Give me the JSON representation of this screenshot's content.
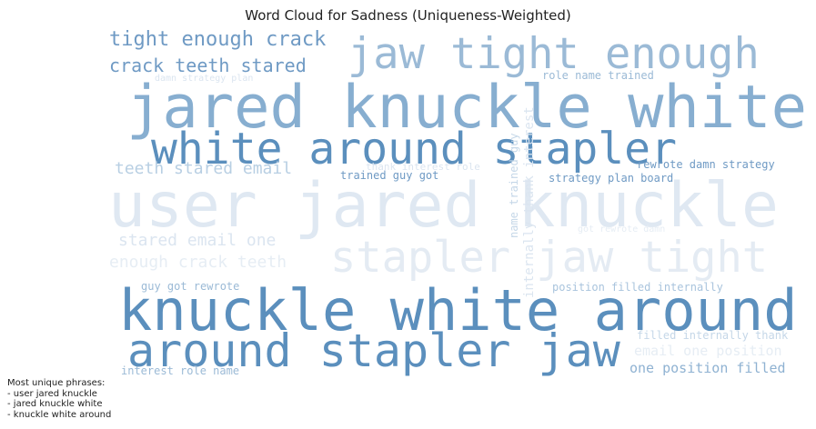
{
  "chart_data": {
    "type": "wordcloud",
    "title": "Word Cloud for Sadness (Uniqueness-Weighted)",
    "words": [
      {
        "text": "user jared knuckle",
        "weight": 1.0,
        "color": "#dfe8f2",
        "orientation": "horizontal"
      },
      {
        "text": "jared knuckle white",
        "weight": 0.9,
        "color": "#87aed0",
        "orientation": "horizontal"
      },
      {
        "text": "knuckle white around",
        "weight": 0.84,
        "color": "#5b8fbd",
        "orientation": "horizontal"
      },
      {
        "text": "around stapler jaw",
        "weight": 0.68,
        "color": "#5b8fbd",
        "orientation": "horizontal"
      },
      {
        "text": "white around stapler",
        "weight": 0.65,
        "color": "#5b8fbd",
        "orientation": "horizontal"
      },
      {
        "text": "jaw tight enough",
        "weight": 0.63,
        "color": "#9bbad6",
        "orientation": "horizontal"
      },
      {
        "text": "stapler jaw tight",
        "weight": 0.63,
        "color": "#e4ebf3",
        "orientation": "horizontal"
      },
      {
        "text": "tight enough crack",
        "weight": 0.32,
        "color": "#6f9ac4",
        "orientation": "horizontal"
      },
      {
        "text": "crack teeth stared",
        "weight": 0.3,
        "color": "#6f9ac4",
        "orientation": "horizontal"
      },
      {
        "text": "teeth stared email",
        "weight": 0.27,
        "color": "#b8cfe3",
        "orientation": "horizontal"
      },
      {
        "text": "stared email one",
        "weight": 0.26,
        "color": "#dbe5f0",
        "orientation": "horizontal"
      },
      {
        "text": "enough crack teeth",
        "weight": 0.26,
        "color": "#e6edf4",
        "orientation": "horizontal"
      },
      {
        "text": "one position filled",
        "weight": 0.2,
        "color": "#8fb2d2",
        "orientation": "horizontal"
      },
      {
        "text": "email one position",
        "weight": 0.2,
        "color": "#e6edf4",
        "orientation": "horizontal"
      },
      {
        "text": "guy got rewrote",
        "weight": 0.17,
        "color": "#9bbad6",
        "orientation": "horizontal"
      },
      {
        "text": "interest role name",
        "weight": 0.17,
        "color": "#9bbad6",
        "orientation": "horizontal"
      },
      {
        "text": "filled internally thank",
        "weight": 0.17,
        "color": "#c5d7e8",
        "orientation": "horizontal"
      },
      {
        "text": "internally thank interest",
        "weight": 0.16,
        "color": "#dbe5f0",
        "orientation": "vertical"
      },
      {
        "text": "name trained guy",
        "weight": 0.14,
        "color": "#c5d7e8",
        "orientation": "vertical"
      },
      {
        "text": "trained guy got",
        "weight": 0.16,
        "color": "#6f9ac4",
        "orientation": "horizontal"
      },
      {
        "text": "rewrote damn strategy",
        "weight": 0.16,
        "color": "#6f9ac4",
        "orientation": "horizontal"
      },
      {
        "text": "strategy plan board",
        "weight": 0.15,
        "color": "#6f9ac4",
        "orientation": "horizontal"
      },
      {
        "text": "role name trained",
        "weight": 0.16,
        "color": "#9bbad6",
        "orientation": "horizontal"
      },
      {
        "text": "position filled internally",
        "weight": 0.16,
        "color": "#a9c4dd",
        "orientation": "horizontal"
      },
      {
        "text": "thank interest role",
        "weight": 0.15,
        "color": "#dbe5f0",
        "orientation": "horizontal"
      },
      {
        "text": "damn strategy plan",
        "weight": 0.13,
        "color": "#dbe5f0",
        "orientation": "horizontal"
      },
      {
        "text": "got rewrote damn",
        "weight": 0.13,
        "color": "#e6edf4",
        "orientation": "horizontal"
      }
    ],
    "notes": [
      "Most unique phrases:",
      "- user jared knuckle",
      "- jared knuckle white",
      "- knuckle white around"
    ]
  }
}
